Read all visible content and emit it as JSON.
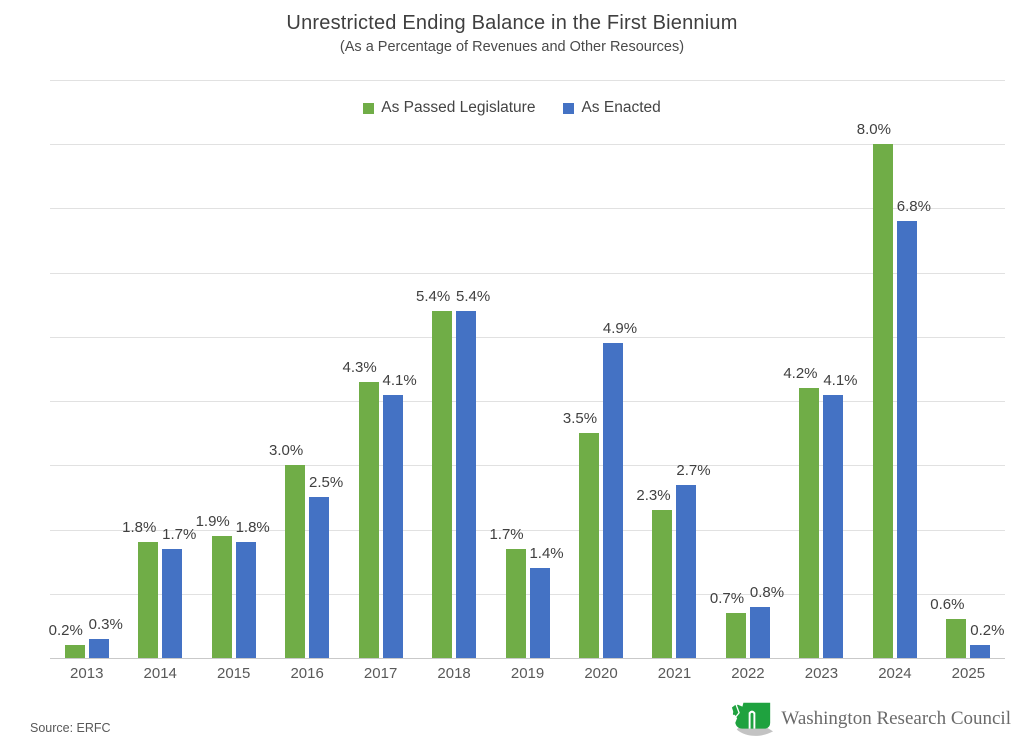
{
  "chart": {
    "title": "Unrestricted Ending Balance in the First Biennium",
    "subtitle": "(As a Percentage of Revenues and Other Resources)",
    "source": "Source: ERFC",
    "logo_text": "Washington Research Council"
  },
  "chart_data": {
    "type": "bar",
    "title": "Unrestricted Ending Balance in the First Biennium",
    "subtitle": "(As a Percentage of Revenues and Other Resources)",
    "categories": [
      "2013",
      "2014",
      "2015",
      "2016",
      "2017",
      "2018",
      "2019",
      "2020",
      "2021",
      "2022",
      "2023",
      "2024",
      "2025"
    ],
    "series": [
      {
        "name": "As Passed Legislature",
        "color": "#70AD47",
        "values": [
          0.2,
          1.8,
          1.9,
          3.0,
          4.3,
          5.4,
          1.7,
          3.5,
          2.3,
          0.7,
          4.2,
          8.0,
          0.6
        ],
        "labels": [
          "0.2%",
          "1.8%",
          "1.9%",
          "3.0%",
          "4.3%",
          "5.4%",
          "1.7%",
          "3.5%",
          "2.3%",
          "0.7%",
          "4.2%",
          "8.0%",
          "0.6%"
        ]
      },
      {
        "name": "As Enacted",
        "color": "#4472C4",
        "values": [
          0.3,
          1.7,
          1.8,
          2.5,
          4.1,
          5.4,
          1.4,
          4.9,
          2.7,
          0.8,
          4.1,
          6.8,
          0.2
        ],
        "labels": [
          "0.3%",
          "1.7%",
          "1.8%",
          "2.5%",
          "4.1%",
          "5.4%",
          "1.4%",
          "4.9%",
          "2.7%",
          "0.8%",
          "4.1%",
          "6.8%",
          "0.2%"
        ]
      }
    ],
    "xlabel": "",
    "ylabel": "",
    "ylim": [
      0,
      9
    ],
    "gridline_step": 1,
    "grid": "horizontal",
    "legend_position": "top",
    "value_labels": "above-bars",
    "source": "Source: ERFC"
  }
}
